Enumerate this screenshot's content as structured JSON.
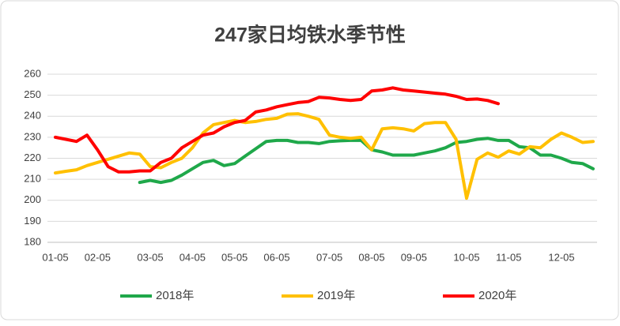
{
  "chart_data": {
    "type": "line",
    "title": "247家日均铁水季节性",
    "categories": [
      "01-05",
      null,
      null,
      null,
      "02-05",
      null,
      null,
      null,
      null,
      "03-05",
      null,
      null,
      null,
      "04-05",
      null,
      null,
      null,
      "05-05",
      null,
      null,
      null,
      "06-05",
      null,
      null,
      null,
      null,
      "07-05",
      null,
      null,
      null,
      "08-05",
      null,
      null,
      null,
      "09-05",
      null,
      null,
      null,
      null,
      "10-05",
      null,
      null,
      null,
      "11-05",
      null,
      null,
      null,
      null,
      "12-05",
      null,
      null,
      null
    ],
    "ylim": [
      180,
      260
    ],
    "yticks": [
      180,
      190,
      200,
      210,
      220,
      230,
      240,
      250,
      260
    ],
    "grid": true,
    "legend": "bottom",
    "series": [
      {
        "name": "2018年",
        "color": "#1fa84a",
        "values": [
          null,
          null,
          null,
          null,
          null,
          null,
          null,
          null,
          208.5,
          209.5,
          208.5,
          209.5,
          212,
          215,
          218,
          219,
          216.5,
          217.5,
          221,
          224.5,
          228,
          228.5,
          228.5,
          227.5,
          227.5,
          227,
          228,
          228.3,
          228.5,
          228.5,
          224,
          223,
          221.5,
          221.5,
          221.5,
          222.5,
          223.5,
          225,
          227.5,
          228,
          229,
          229.5,
          228.5,
          228.5,
          225.5,
          225,
          221.5,
          221.5,
          220,
          218,
          217.5,
          215
        ]
      },
      {
        "name": "2019年",
        "color": "#ffc000",
        "values": [
          213,
          213.8,
          214.5,
          216.5,
          218,
          219.5,
          221,
          222.5,
          222,
          216,
          215.5,
          218,
          220,
          225,
          232,
          236,
          237,
          238,
          237,
          237.5,
          238.5,
          239,
          241,
          241.2,
          240,
          238.5,
          231,
          230,
          229.5,
          230,
          224,
          234,
          234.5,
          234,
          233,
          236.5,
          237,
          237,
          229,
          201,
          219.5,
          222.5,
          220.5,
          223.5,
          222,
          225.5,
          225,
          229,
          232,
          230,
          227.5,
          228
        ]
      },
      {
        "name": "2020年",
        "color": "#ff0000",
        "values": [
          230,
          229,
          228,
          231,
          224,
          216,
          213.5,
          213.5,
          214,
          214,
          218,
          220,
          225,
          228,
          231,
          232,
          235,
          237,
          238,
          242,
          243,
          244.5,
          245.5,
          246.5,
          247,
          249,
          248.7,
          248,
          247.5,
          248,
          252,
          252.5,
          253.5,
          252.5,
          252,
          251.5,
          251,
          250.5,
          249.5,
          248,
          248.2,
          247.5,
          246,
          null,
          null,
          null,
          null,
          null,
          null,
          null,
          null,
          null
        ]
      }
    ]
  }
}
